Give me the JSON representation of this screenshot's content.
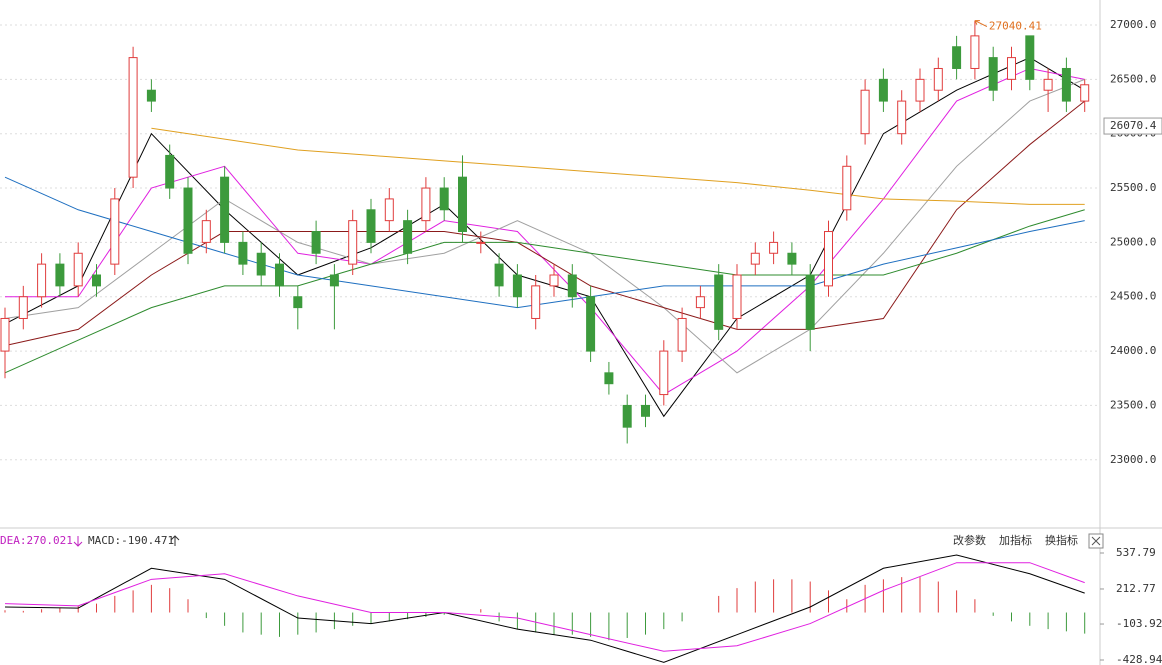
{
  "chart_data": {
    "type": "candlestick",
    "ylim": [
      22400,
      27230
    ],
    "yticks": [
      {
        "value": 23000,
        "label": "23000.0"
      },
      {
        "value": 23500,
        "label": "23500.0"
      },
      {
        "value": 24000,
        "label": "24000.0"
      },
      {
        "value": 24500,
        "label": "24500.0"
      },
      {
        "value": 25000,
        "label": "25000.0"
      },
      {
        "value": 25500,
        "label": "25500.0"
      },
      {
        "value": 26000,
        "label": "26000.0"
      },
      {
        "value": 26500,
        "label": "26500.0"
      },
      {
        "value": 27000,
        "label": "27000.0"
      }
    ],
    "grid": true,
    "up_color": "#e03c3c",
    "down_color": "#3c9a3c",
    "open": [
      24000,
      24300,
      24500,
      24800,
      24600,
      24700,
      24800,
      25600,
      26400,
      25800,
      25500,
      25000,
      25600,
      25000,
      24900,
      24800,
      24500,
      25100,
      24700,
      24800,
      25300,
      25200,
      25200,
      25200,
      25500,
      25600,
      25000,
      24800,
      24700,
      24300,
      24600,
      24700,
      24500,
      23800,
      23500,
      23500,
      23600,
      24000,
      24400,
      24700,
      24300,
      24800,
      24900,
      24900,
      24700,
      24600,
      25300,
      26000,
      26500,
      26000,
      26300,
      26400,
      26800,
      26600,
      26700,
      26500,
      26900,
      26400,
      26600,
      26300
    ],
    "high": [
      24400,
      24600,
      24900,
      24900,
      25000,
      24800,
      25500,
      26800,
      26500,
      25900,
      25600,
      25300,
      25700,
      25100,
      25000,
      24900,
      24600,
      25200,
      24800,
      25300,
      25400,
      25500,
      25300,
      25600,
      25600,
      25800,
      25100,
      24900,
      24800,
      24700,
      24800,
      24800,
      24600,
      23900,
      23600,
      23600,
      24100,
      24400,
      24600,
      24800,
      24800,
      25000,
      25100,
      25000,
      24800,
      25200,
      25800,
      26500,
      26600,
      26400,
      26600,
      26700,
      26900,
      27040.41,
      26800,
      26800,
      26900,
      26600,
      26700,
      26500
    ],
    "low": [
      23750,
      24200,
      24400,
      24500,
      24500,
      24500,
      24700,
      25500,
      26200,
      25400,
      24800,
      24900,
      24900,
      24700,
      24600,
      24500,
      24200,
      24800,
      24200,
      24700,
      24900,
      25100,
      24800,
      25100,
      25200,
      25000,
      24900,
      24500,
      24400,
      24200,
      24500,
      24400,
      23900,
      23600,
      23150,
      23300,
      23500,
      23900,
      24300,
      24100,
      24200,
      24700,
      24800,
      24700,
      24000,
      24500,
      25200,
      25900,
      26200,
      25900,
      26200,
      26300,
      26500,
      26500,
      26300,
      26400,
      26400,
      26200,
      26200,
      26200
    ],
    "close": [
      24300,
      24500,
      24800,
      24600,
      24900,
      24600,
      25400,
      26700,
      26300,
      25500,
      24900,
      25200,
      25000,
      24800,
      24700,
      24600,
      24400,
      24900,
      24600,
      25200,
      25000,
      25400,
      24900,
      25500,
      25300,
      25100,
      25000,
      24600,
      24500,
      24600,
      24700,
      24500,
      24000,
      23700,
      23300,
      23400,
      24000,
      24300,
      24500,
      24200,
      24700,
      24900,
      25000,
      24800,
      24200,
      25100,
      25700,
      26400,
      26300,
      26300,
      26500,
      26600,
      26600,
      26900,
      26400,
      26700,
      26500,
      26500,
      26300,
      26450
    ],
    "last_price": 26070.4,
    "max_label": 27040.41,
    "line_x": [
      0,
      4,
      8,
      12,
      16,
      20,
      24,
      28,
      32,
      36,
      40,
      44,
      48,
      52,
      56,
      59
    ],
    "lines": [
      {
        "color": "#000000",
        "values": [
          24250,
          24600,
          26000,
          25300,
          24700,
          24950,
          25350,
          24700,
          24500,
          23400,
          24300,
          24700,
          26000,
          26400,
          26700,
          26400
        ]
      },
      {
        "color": "#e020e0",
        "values": [
          24500,
          24500,
          25500,
          25700,
          24900,
          24800,
          25200,
          25100,
          24400,
          23600,
          24000,
          24600,
          25400,
          26300,
          26600,
          26500
        ]
      },
      {
        "color": "#a0a0a0",
        "values": [
          24300,
          24400,
          24900,
          25400,
          25000,
          24800,
          24900,
          25200,
          24900,
          24400,
          23800,
          24200,
          24900,
          25700,
          26300,
          26500
        ]
      },
      {
        "color": "#8b1a1a",
        "values": [
          24050,
          24200,
          24700,
          25100,
          25100,
          25100,
          25100,
          25000,
          24600,
          24400,
          24200,
          24200,
          24300,
          25300,
          25900,
          26300
        ]
      },
      {
        "color": "#2e8b2e",
        "values": [
          23800,
          24100,
          24400,
          24600,
          24600,
          24800,
          25000,
          25000,
          24900,
          24800,
          24700,
          24700,
          24700,
          24900,
          25150,
          25300
        ]
      },
      {
        "color": "#1e6fc0",
        "values": [
          25600,
          25300,
          25100,
          24900,
          24700,
          24600,
          24500,
          24400,
          24500,
          24600,
          24600,
          24600,
          24800,
          24950,
          25100,
          25200
        ]
      },
      {
        "color": "#e0a020",
        "values": [
          null,
          null,
          26050,
          25950,
          25850,
          25800,
          25750,
          25700,
          25650,
          25600,
          25550,
          25480,
          25400,
          25380,
          25350,
          25350
        ]
      }
    ],
    "macd": {
      "type": "macd",
      "dea_label": "DEA:270.021",
      "macd_label": "MACD:-190.471",
      "ylim": [
        -428.94,
        537.79
      ],
      "yticks": [
        537.79,
        212.77,
        -103.92,
        -428.94
      ],
      "hist_up_color": "#e03c3c",
      "hist_down_color": "#3c9a3c",
      "dif_color": "#000000",
      "dea_color": "#e020e0",
      "hist": [
        20,
        15,
        30,
        40,
        60,
        80,
        150,
        200,
        250,
        220,
        120,
        -50,
        -120,
        -180,
        -200,
        -220,
        -200,
        -180,
        -150,
        -120,
        -100,
        -80,
        -60,
        -40,
        -20,
        0,
        30,
        -80,
        -150,
        -180,
        -200,
        -200,
        -220,
        -250,
        -230,
        -200,
        -150,
        -80,
        0,
        150,
        220,
        280,
        300,
        300,
        280,
        200,
        120,
        250,
        300,
        320,
        320,
        280,
        200,
        120,
        -30,
        -80,
        -120,
        -150,
        -170,
        -190.471
      ],
      "dif": [
        50,
        40,
        400,
        300,
        -50,
        -100,
        0,
        -150,
        -250,
        -450,
        -200,
        50,
        400,
        520,
        350,
        175
      ],
      "dea": [
        80,
        60,
        300,
        350,
        150,
        0,
        0,
        -50,
        -200,
        -350,
        -300,
        -100,
        200,
        450,
        450,
        270.021
      ]
    },
    "buttons": [
      "改参数",
      "加指标",
      "换指标"
    ]
  }
}
